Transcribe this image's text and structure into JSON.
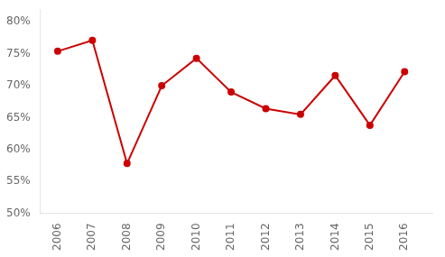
{
  "chart_data": {
    "type": "line",
    "x": [
      2006,
      2007,
      2008,
      2009,
      2010,
      2011,
      2012,
      2013,
      2014,
      2015,
      2016
    ],
    "values": [
      0.754,
      0.771,
      0.578,
      0.7,
      0.743,
      0.69,
      0.664,
      0.655,
      0.716,
      0.638,
      0.722
    ],
    "color": "#cc0000",
    "marker": "circle",
    "xlim": [
      2005.5,
      2016.8
    ],
    "xticks": [
      2006,
      2007,
      2008,
      2009,
      2010,
      2011,
      2012,
      2013,
      2014,
      2015,
      2016
    ],
    "ylim": [
      0.5,
      0.82
    ],
    "yticks": [
      {
        "value": 0.5,
        "label": "50%"
      },
      {
        "value": 0.55,
        "label": "55%"
      },
      {
        "value": 0.6,
        "label": "60%"
      },
      {
        "value": 0.65,
        "label": "65%"
      },
      {
        "value": 0.7,
        "label": "70%"
      },
      {
        "value": 0.75,
        "label": "75%"
      },
      {
        "value": 0.8,
        "label": "80%"
      }
    ],
    "grid": false
  }
}
